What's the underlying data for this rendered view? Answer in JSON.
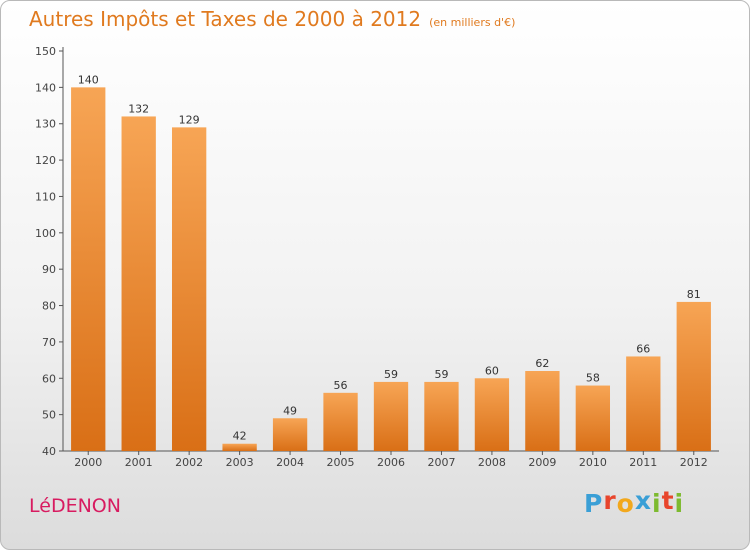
{
  "header": {
    "title": "Autres Impôts et Taxes de 2000 à 2012",
    "subtitle": "(en milliers d'€)"
  },
  "commune": "LéDENON",
  "logo": {
    "letters": [
      "P",
      "r",
      "o",
      "x",
      "i",
      "t",
      "i"
    ],
    "colors": [
      "#3a9fd6",
      "#e8452c",
      "#f2a81d",
      "#3a9fd6",
      "#7dba2f",
      "#e8452c",
      "#7dba2f"
    ]
  },
  "colors": {
    "accent": "#e07a1f",
    "bar_top": "#f7a555",
    "bar_bottom": "#d96f16",
    "commune": "#d81b60"
  },
  "chart_data": {
    "type": "bar",
    "categories": [
      "2000",
      "2001",
      "2002",
      "2003",
      "2004",
      "2005",
      "2006",
      "2007",
      "2008",
      "2009",
      "2010",
      "2011",
      "2012"
    ],
    "values": [
      140,
      132,
      129,
      42,
      49,
      56,
      59,
      59,
      60,
      62,
      58,
      66,
      81
    ],
    "ylim": [
      40,
      150
    ],
    "yticks": [
      40,
      50,
      60,
      70,
      80,
      90,
      100,
      110,
      120,
      130,
      140,
      150
    ],
    "grid": false
  }
}
